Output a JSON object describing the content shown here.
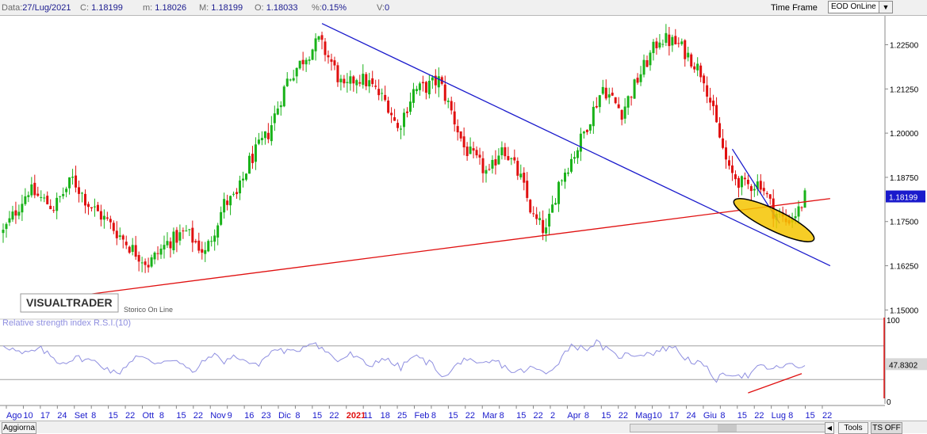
{
  "toolbar": {
    "date_label": "Data:",
    "date_value": "27/Lug/2021",
    "close_label": "C:",
    "close_value": "1.18199",
    "min_label": "m:",
    "min_value": "1.18026",
    "max_label": "M:",
    "max_value": "1.18199",
    "open_label": "O:",
    "open_value": "1.18033",
    "pct_label": "%:",
    "pct_value": "0.15%",
    "vol_label": "V:",
    "vol_value": "0",
    "timeframe_label": "Time Frame",
    "timeframe_value": "EOD OnLine"
  },
  "logo": {
    "text": "VISUALTRADER",
    "sub": "Storico On Line"
  },
  "rsi": {
    "title": "Relative strength index R.S.I.(10)",
    "current": "47.8302",
    "axis_top": "100",
    "axis_bottom": "0",
    "levels": [
      70,
      30
    ]
  },
  "bottombar": {
    "refresh": "Aggiorna",
    "tools": "Tools",
    "ts": "TS OFF"
  },
  "colors": {
    "up": "#19b219",
    "down": "#e01010",
    "trend_blue": "#1a1acc",
    "trend_red": "#e01010",
    "highlight": "#f5c400",
    "rsi_line": "#8f8fe0",
    "price_badge": "#1a1acc"
  },
  "chart_data": {
    "type": "candlestick",
    "symbol_last": "1.18199",
    "ylim": [
      1.1465,
      1.2325
    ],
    "yticks": [
      "1.22500",
      "1.21250",
      "1.20000",
      "1.18750",
      "1.17500",
      "1.16250",
      "1.15000"
    ],
    "x_labels": [
      {
        "t": "Ago",
        "month": true
      },
      {
        "t": "10"
      },
      {
        "t": "17"
      },
      {
        "t": "24"
      },
      {
        "t": "Set",
        "month": true
      },
      {
        "t": "8"
      },
      {
        "t": "15"
      },
      {
        "t": "22"
      },
      {
        "t": "Ott",
        "month": true
      },
      {
        "t": "8"
      },
      {
        "t": "15"
      },
      {
        "t": "22"
      },
      {
        "t": "Nov",
        "month": true
      },
      {
        "t": "9"
      },
      {
        "t": "16"
      },
      {
        "t": "23"
      },
      {
        "t": "Dic",
        "month": true
      },
      {
        "t": "8"
      },
      {
        "t": "15"
      },
      {
        "t": "22"
      },
      {
        "t": "2021",
        "year": true
      },
      {
        "t": "11"
      },
      {
        "t": "18"
      },
      {
        "t": "25"
      },
      {
        "t": "Feb",
        "month": true
      },
      {
        "t": "8"
      },
      {
        "t": "15"
      },
      {
        "t": "22"
      },
      {
        "t": "Mar",
        "month": true
      },
      {
        "t": "8"
      },
      {
        "t": "15"
      },
      {
        "t": "22"
      },
      {
        "t": "2"
      },
      {
        "t": "Apr",
        "month": true
      },
      {
        "t": "8"
      },
      {
        "t": "15"
      },
      {
        "t": "22"
      },
      {
        "t": "Mag",
        "month": true
      },
      {
        "t": "10"
      },
      {
        "t": "17"
      },
      {
        "t": "24"
      },
      {
        "t": "Giu",
        "month": true
      },
      {
        "t": "8"
      },
      {
        "t": "15"
      },
      {
        "t": "22"
      },
      {
        "t": "Lug",
        "month": true
      },
      {
        "t": "8"
      },
      {
        "t": "15"
      },
      {
        "t": "22"
      }
    ],
    "candle_count": 255,
    "price_path": [
      [
        0,
        1.172
      ],
      [
        8,
        1.184
      ],
      [
        16,
        1.179
      ],
      [
        22,
        1.187
      ],
      [
        27,
        1.18
      ],
      [
        33,
        1.175
      ],
      [
        40,
        1.168
      ],
      [
        46,
        1.163
      ],
      [
        52,
        1.169
      ],
      [
        58,
        1.172
      ],
      [
        64,
        1.166
      ],
      [
        70,
        1.18
      ],
      [
        74,
        1.182
      ],
      [
        78,
        1.192
      ],
      [
        84,
        1.2
      ],
      [
        90,
        1.215
      ],
      [
        96,
        1.222
      ],
      [
        100,
        1.226
      ],
      [
        104,
        1.22
      ],
      [
        108,
        1.212
      ],
      [
        112,
        1.216
      ],
      [
        116,
        1.214
      ],
      [
        122,
        1.208
      ],
      [
        125,
        1.201
      ],
      [
        130,
        1.212
      ],
      [
        134,
        1.213
      ],
      [
        138,
        1.215
      ],
      [
        142,
        1.206
      ],
      [
        146,
        1.196
      ],
      [
        150,
        1.192
      ],
      [
        154,
        1.188
      ],
      [
        158,
        1.197
      ],
      [
        164,
        1.187
      ],
      [
        168,
        1.176
      ],
      [
        172,
        1.172
      ],
      [
        176,
        1.186
      ],
      [
        182,
        1.196
      ],
      [
        190,
        1.213
      ],
      [
        196,
        1.206
      ],
      [
        202,
        1.217
      ],
      [
        208,
        1.227
      ],
      [
        214,
        1.225
      ],
      [
        218,
        1.221
      ],
      [
        222,
        1.216
      ],
      [
        226,
        1.202
      ],
      [
        230,
        1.189
      ],
      [
        235,
        1.185
      ],
      [
        240,
        1.186
      ],
      [
        244,
        1.178
      ],
      [
        248,
        1.175
      ],
      [
        252,
        1.178
      ],
      [
        254,
        1.182
      ]
    ],
    "trendlines": [
      {
        "name": "downtrend",
        "color": "blue",
        "points": [
          [
            101,
            1.231
          ],
          [
            262,
            1.1625
          ]
        ]
      },
      {
        "name": "support",
        "color": "red",
        "points": [
          [
            19,
            1.1535
          ],
          [
            262,
            1.1815
          ]
        ]
      },
      {
        "name": "channel",
        "color": "blue",
        "points": [
          [
            231,
            1.1955
          ],
          [
            246,
            1.1745
          ]
        ]
      }
    ],
    "rsi_path": [
      [
        0,
        72
      ],
      [
        6,
        60
      ],
      [
        12,
        66
      ],
      [
        18,
        50
      ],
      [
        24,
        56
      ],
      [
        30,
        50
      ],
      [
        36,
        36
      ],
      [
        42,
        58
      ],
      [
        48,
        50
      ],
      [
        54,
        55
      ],
      [
        60,
        38
      ],
      [
        66,
        60
      ],
      [
        70,
        52
      ],
      [
        74,
        58
      ],
      [
        80,
        46
      ],
      [
        86,
        66
      ],
      [
        92,
        62
      ],
      [
        98,
        76
      ],
      [
        102,
        64
      ],
      [
        106,
        52
      ],
      [
        110,
        60
      ],
      [
        116,
        46
      ],
      [
        120,
        56
      ],
      [
        126,
        44
      ],
      [
        130,
        58
      ],
      [
        136,
        48
      ],
      [
        140,
        32
      ],
      [
        146,
        56
      ],
      [
        150,
        46
      ],
      [
        156,
        52
      ],
      [
        162,
        38
      ],
      [
        168,
        44
      ],
      [
        172,
        36
      ],
      [
        176,
        52
      ],
      [
        180,
        72
      ],
      [
        184,
        66
      ],
      [
        188,
        74
      ],
      [
        194,
        58
      ],
      [
        200,
        60
      ],
      [
        206,
        62
      ],
      [
        212,
        70
      ],
      [
        216,
        56
      ],
      [
        222,
        46
      ],
      [
        226,
        30
      ],
      [
        230,
        38
      ],
      [
        236,
        34
      ],
      [
        240,
        46
      ],
      [
        244,
        42
      ],
      [
        248,
        48
      ],
      [
        252,
        44
      ],
      [
        254,
        48
      ]
    ],
    "rsi_divergence": [
      [
        236,
        14
      ],
      [
        253,
        37
      ]
    ]
  }
}
